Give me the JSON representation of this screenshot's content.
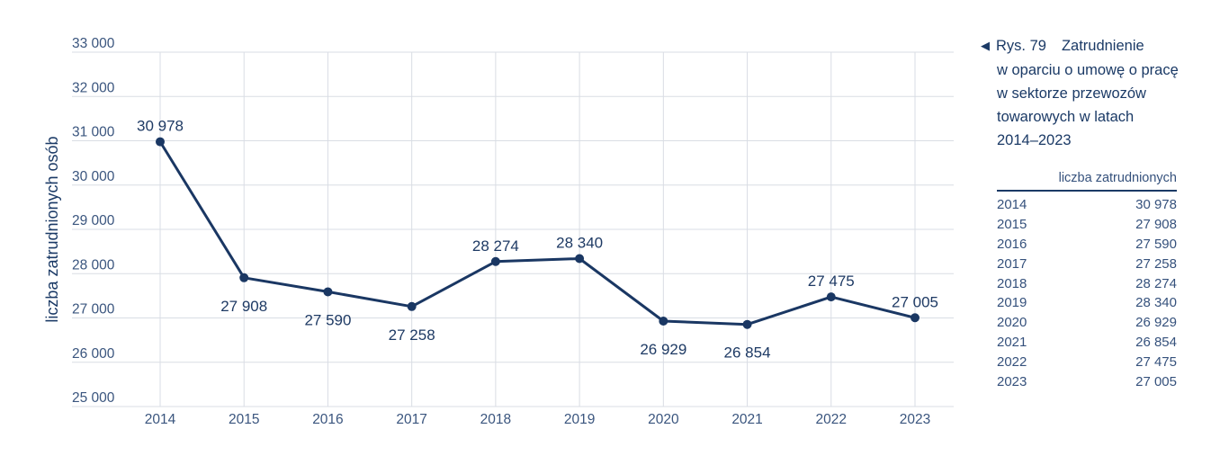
{
  "colors": {
    "line": "#1a3763",
    "grid": "#d9dde4",
    "tick_text": "#3a557e",
    "data_label": "#1e3a64",
    "caption_text": "#1b3a66",
    "table_text": "#35517c",
    "table_rule": "#1b3a66"
  },
  "caption": {
    "marker": "◀",
    "figure_label": "Rys. 79",
    "title_lines": [
      "Zatrudnienie",
      "w oparciu o umowę o pracę",
      "w sektorze przewozów",
      "towarowych w latach",
      "2014–2023"
    ]
  },
  "table": {
    "header": "liczba zatrudnionych",
    "rows": [
      {
        "year": "2014",
        "value": "30 978"
      },
      {
        "year": "2015",
        "value": "27 908"
      },
      {
        "year": "2016",
        "value": "27 590"
      },
      {
        "year": "2017",
        "value": "27 258"
      },
      {
        "year": "2018",
        "value": "28 274"
      },
      {
        "year": "2019",
        "value": "28 340"
      },
      {
        "year": "2020",
        "value": "26 929"
      },
      {
        "year": "2021",
        "value": "26 854"
      },
      {
        "year": "2022",
        "value": "27 475"
      },
      {
        "year": "2023",
        "value": "27 005"
      }
    ]
  },
  "chart_data": {
    "type": "line",
    "title": "",
    "xlabel": "",
    "ylabel": "liczba zatrudnionych osób",
    "x": [
      "2014",
      "2015",
      "2016",
      "2017",
      "2018",
      "2019",
      "2020",
      "2021",
      "2022",
      "2023"
    ],
    "values": [
      30978,
      27908,
      27590,
      27258,
      28274,
      28340,
      26929,
      26854,
      27475,
      27005
    ],
    "value_labels": [
      "30 978",
      "27 908",
      "27 590",
      "27 258",
      "28 274",
      "28 340",
      "26 929",
      "26 854",
      "27 475",
      "27 005"
    ],
    "label_position": [
      "above",
      "below",
      "below",
      "below",
      "above",
      "above",
      "below",
      "below",
      "above",
      "above"
    ],
    "ylim": [
      25000,
      33000
    ],
    "yticks": [
      {
        "value": 33000,
        "label": "33 000"
      },
      {
        "value": 32000,
        "label": "32 000"
      },
      {
        "value": 31000,
        "label": "31 000"
      },
      {
        "value": 30000,
        "label": "30 000"
      },
      {
        "value": 29000,
        "label": "29 000"
      },
      {
        "value": 28000,
        "label": "28 000"
      },
      {
        "value": 27000,
        "label": "27 000"
      },
      {
        "value": 26000,
        "label": "26 000"
      },
      {
        "value": 25000,
        "label": "25 000"
      }
    ],
    "grid": true,
    "legend": "none"
  }
}
